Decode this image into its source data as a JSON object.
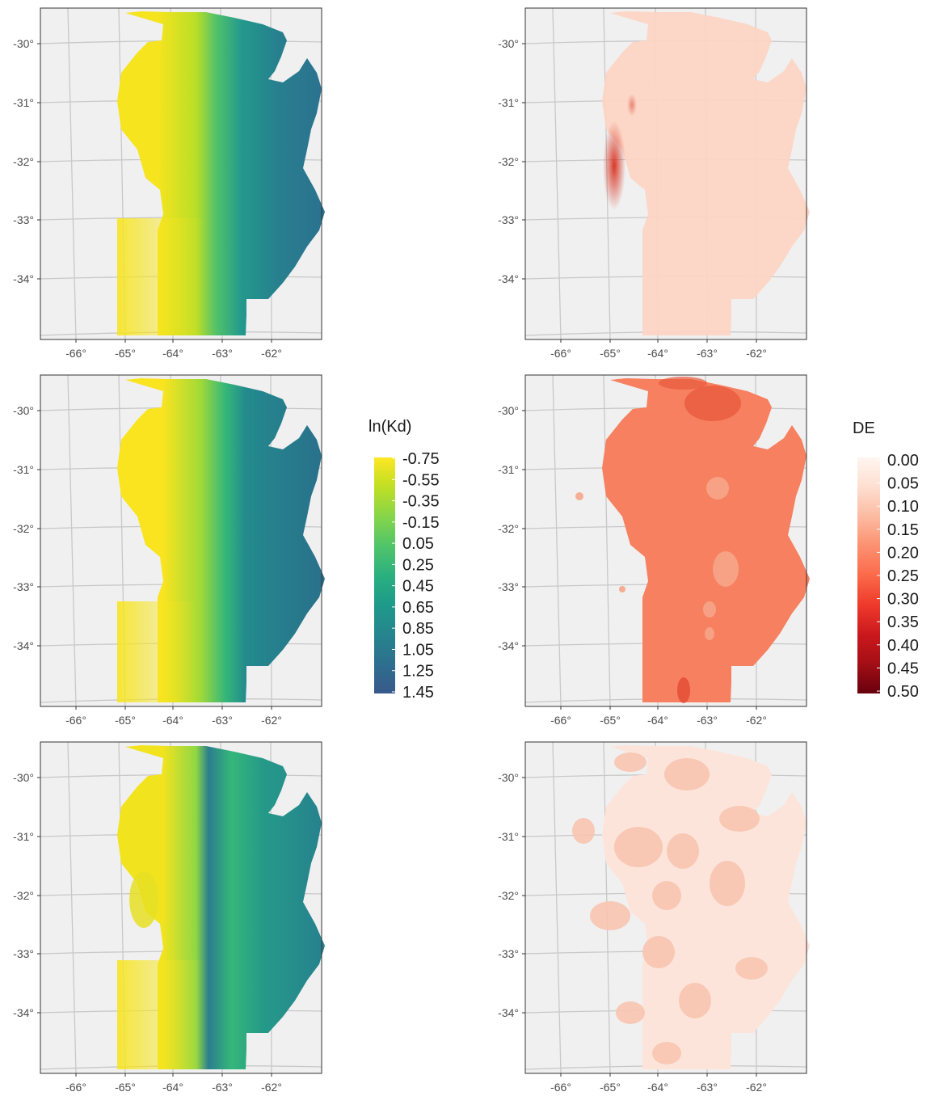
{
  "x_tick_labels": [
    "-66°",
    "-65°",
    "-64°",
    "-63°",
    "-62°"
  ],
  "y_tick_labels": [
    "-30°",
    "-31°",
    "-32°",
    "-33°",
    "-34°"
  ],
  "panels": [
    {
      "row": 1,
      "column": "left",
      "variable": "ln(Kd)",
      "pattern": "Yellow (low values) in the west and southwest, teal-green in the centre, dark teal (high values) in the north-east and east."
    },
    {
      "row": 1,
      "column": "right",
      "variable": "DE",
      "pattern": "Uniform light salmon (about 0.10) with a darker red streak (about 0.30) near -65°, -31.5° to -32.5°."
    },
    {
      "row": 2,
      "column": "left",
      "variable": "ln(Kd)",
      "pattern": "Yellow west and south-west, green band, dark teal across the east and north-east."
    },
    {
      "row": 2,
      "column": "right",
      "variable": "DE",
      "pattern": "Nearly uniform salmon-orange (about 0.23) with slightly darker patches in the north-east and south; lighter patches near -62.5°."
    },
    {
      "row": 3,
      "column": "left",
      "variable": "ln(Kd)",
      "pattern": "Yellow west and south, with a dark teal ribbon near -64.8° and a yellow spot near -64.5°, -32.2°; teal-green east."
    },
    {
      "row": 3,
      "column": "right",
      "variable": "DE",
      "pattern": "Very light pink (about 0.03) with blotchy slightly darker patches (about 0.08)."
    }
  ],
  "legends": [
    {
      "id": "kd",
      "title": "ln(Kd)",
      "labels": [
        "-0.75",
        "-0.55",
        "-0.35",
        "-0.15",
        "0.05",
        "0.25",
        "0.45",
        "0.65",
        "0.85",
        "1.05",
        "1.25",
        "1.45"
      ],
      "colors": [
        "#fde725",
        "#c2df23",
        "#86d549",
        "#52c569",
        "#2ab07f",
        "#1e9b8a",
        "#25858e",
        "#2d708e",
        "#38598c"
      ]
    },
    {
      "id": "de",
      "title": "DE",
      "labels": [
        "0.00",
        "0.05",
        "0.10",
        "0.15",
        "0.20",
        "0.25",
        "0.30",
        "0.35",
        "0.40",
        "0.45",
        "0.50"
      ],
      "colors": [
        "#fff5f0",
        "#fee0d2",
        "#fcbba1",
        "#fc9272",
        "#fb6a4a",
        "#ef3b2c",
        "#cb181d",
        "#a50f15",
        "#67000d"
      ]
    }
  ],
  "colors": {
    "panel_background": "#f0f0f0",
    "graticule": "#c8c8c8",
    "panel_border": "#333333"
  }
}
